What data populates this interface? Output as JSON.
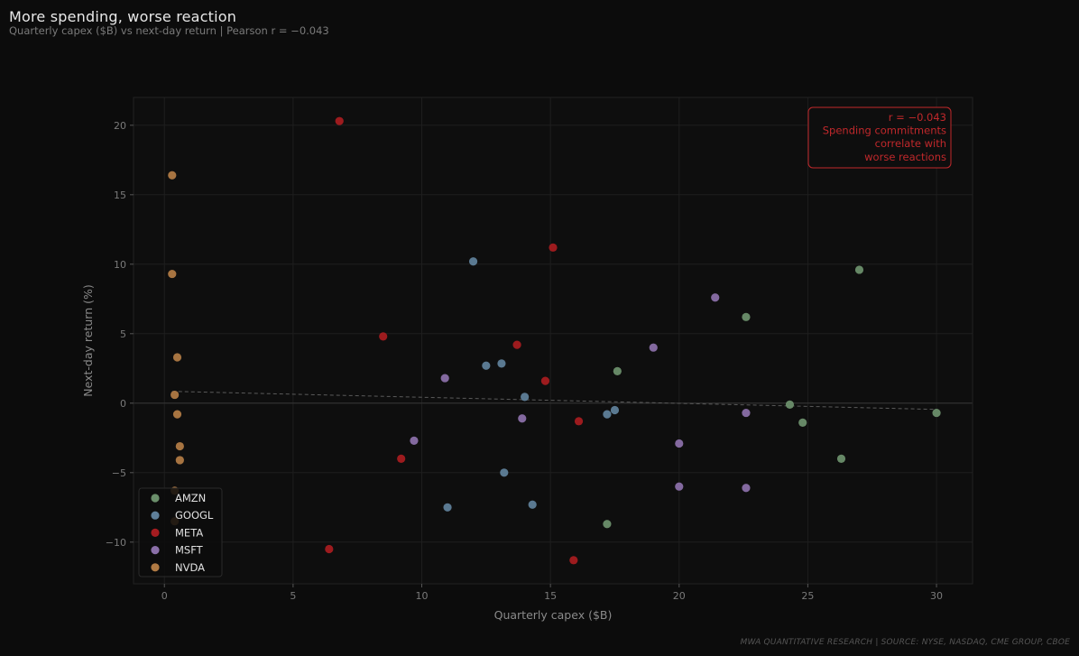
{
  "header": {
    "title": "More spending, worse reaction",
    "subtitle": "Quarterly capex ($B) vs next-day return  |  Pearson r = −0.043"
  },
  "footer": "MWA QUANTITATIVE RESEARCH  |  SOURCE: NYSE, NASDAQ, CME GROUP, CBOE",
  "annotation": {
    "lines": [
      "r = −0.043",
      "Spending commitments",
      "correlate with",
      "worse reactions"
    ],
    "color": "#c0282b"
  },
  "colors": {
    "background": "#0c0c0c",
    "plot_background": "#0e0e0e",
    "AMZN": "#6b8f6b",
    "GOOGL": "#5f7f99",
    "META": "#a51c20",
    "MSFT": "#8a6fa8",
    "NVDA": "#b07a44"
  },
  "chart_data": {
    "type": "scatter",
    "title": "More spending, worse reaction",
    "subtitle": "Quarterly capex ($B) vs next-day return  |  Pearson r = −0.043",
    "xlabel": "Quarterly capex ($B)",
    "ylabel": "Next-day return (%)",
    "xlim": [
      -1.2,
      31.4
    ],
    "ylim": [
      -13,
      22
    ],
    "xticks": [
      0,
      5,
      10,
      15,
      20,
      25,
      30
    ],
    "yticks": [
      -10,
      -5,
      0,
      5,
      10,
      15,
      20
    ],
    "grid": true,
    "legend_position": "lower-left",
    "trendline": {
      "x": [
        0.3,
        30.0
      ],
      "y": [
        0.85,
        -0.45
      ]
    },
    "series": [
      {
        "name": "AMZN",
        "points": [
          {
            "x": 27.0,
            "y": 9.6
          },
          {
            "x": 22.6,
            "y": 6.2
          },
          {
            "x": 17.6,
            "y": 2.3
          },
          {
            "x": 24.3,
            "y": -0.1
          },
          {
            "x": 24.8,
            "y": -1.4
          },
          {
            "x": 30.0,
            "y": -0.7
          },
          {
            "x": 26.3,
            "y": -4.0
          },
          {
            "x": 17.2,
            "y": -8.7
          }
        ]
      },
      {
        "name": "GOOGL",
        "points": [
          {
            "x": 12.0,
            "y": 10.2
          },
          {
            "x": 12.5,
            "y": 2.7
          },
          {
            "x": 13.1,
            "y": 2.85
          },
          {
            "x": 14.0,
            "y": 0.45
          },
          {
            "x": 17.2,
            "y": -0.8
          },
          {
            "x": 17.5,
            "y": -0.5
          },
          {
            "x": 13.2,
            "y": -5.0
          },
          {
            "x": 14.3,
            "y": -7.3
          },
          {
            "x": 11.0,
            "y": -7.5
          }
        ]
      },
      {
        "name": "META",
        "points": [
          {
            "x": 6.8,
            "y": 20.3
          },
          {
            "x": 15.1,
            "y": 11.2
          },
          {
            "x": 8.5,
            "y": 4.8
          },
          {
            "x": 13.7,
            "y": 4.2
          },
          {
            "x": 14.8,
            "y": 1.6
          },
          {
            "x": 16.1,
            "y": -1.3
          },
          {
            "x": 9.2,
            "y": -4.0
          },
          {
            "x": 6.4,
            "y": -10.5
          },
          {
            "x": 15.9,
            "y": -11.3
          }
        ]
      },
      {
        "name": "MSFT",
        "points": [
          {
            "x": 21.4,
            "y": 7.6
          },
          {
            "x": 19.0,
            "y": 4.0
          },
          {
            "x": 10.9,
            "y": 1.8
          },
          {
            "x": 13.9,
            "y": -1.1
          },
          {
            "x": 22.6,
            "y": -0.7
          },
          {
            "x": 9.7,
            "y": -2.7
          },
          {
            "x": 20.0,
            "y": -2.9
          },
          {
            "x": 20.0,
            "y": -6.0
          },
          {
            "x": 22.6,
            "y": -6.1
          }
        ]
      },
      {
        "name": "NVDA",
        "points": [
          {
            "x": 0.3,
            "y": 16.4
          },
          {
            "x": 0.3,
            "y": 9.3
          },
          {
            "x": 0.5,
            "y": 3.3
          },
          {
            "x": 0.4,
            "y": 0.6
          },
          {
            "x": 0.5,
            "y": -0.8
          },
          {
            "x": 0.6,
            "y": -3.1
          },
          {
            "x": 0.6,
            "y": -4.1
          },
          {
            "x": 0.4,
            "y": -6.3
          },
          {
            "x": 0.4,
            "y": -8.5
          }
        ]
      }
    ]
  }
}
